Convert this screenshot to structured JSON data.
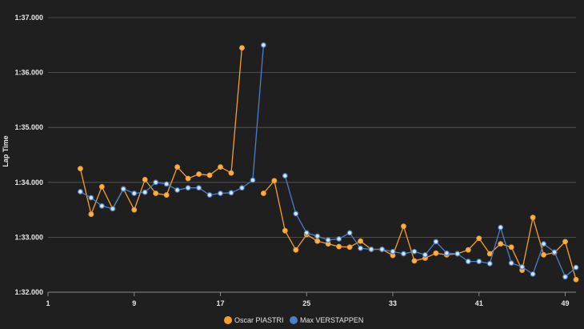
{
  "chart_data": {
    "type": "line",
    "title": "",
    "xlabel": "",
    "ylabel": "Lap Time",
    "xlim": [
      1,
      50
    ],
    "ylim": [
      92.0,
      97.0
    ],
    "x_ticks": [
      1,
      9,
      17,
      25,
      33,
      41,
      49
    ],
    "y_ticks": [
      {
        "value": 92.0,
        "label": "1:32.000"
      },
      {
        "value": 93.0,
        "label": "1:33.000"
      },
      {
        "value": 94.0,
        "label": "1:34.000"
      },
      {
        "value": 95.0,
        "label": "1:35.000"
      },
      {
        "value": 96.0,
        "label": "1:36.000"
      },
      {
        "value": 97.0,
        "label": "1:37.000"
      }
    ],
    "grid": true,
    "legend_position": "bottom-center",
    "series": [
      {
        "name": "Oscar PIASTRI",
        "color": "#f59f2a",
        "x": [
          4,
          5,
          6,
          7,
          8,
          9,
          10,
          11,
          12,
          13,
          14,
          15,
          16,
          17,
          18,
          19,
          21,
          22,
          23,
          24,
          25,
          26,
          27,
          28,
          29,
          30,
          31,
          32,
          33,
          34,
          35,
          36,
          37,
          38,
          39,
          40,
          41,
          42,
          43,
          44,
          45,
          46,
          47,
          48,
          49,
          50
        ],
        "y": [
          94.25,
          93.42,
          93.92,
          93.52,
          93.88,
          93.5,
          94.05,
          93.8,
          93.77,
          94.28,
          94.07,
          94.15,
          94.13,
          94.28,
          94.17,
          96.45,
          93.8,
          94.03,
          93.12,
          92.77,
          93.05,
          92.93,
          92.88,
          92.83,
          92.82,
          92.93,
          92.78,
          92.78,
          92.67,
          93.2,
          92.57,
          92.62,
          92.71,
          92.68,
          92.7,
          92.77,
          92.98,
          92.7,
          92.88,
          92.82,
          92.4,
          93.36,
          92.68,
          92.72,
          92.92,
          92.23
        ]
      },
      {
        "name": "Max VERSTAPPEN",
        "color": "#4a7fc9",
        "x": [
          4,
          5,
          6,
          7,
          8,
          9,
          10,
          11,
          12,
          13,
          14,
          15,
          16,
          17,
          18,
          19,
          20,
          21,
          23,
          24,
          25,
          26,
          27,
          28,
          29,
          30,
          31,
          32,
          33,
          34,
          35,
          36,
          37,
          38,
          39,
          40,
          41,
          42,
          43,
          44,
          45,
          46,
          47,
          48,
          49,
          50
        ],
        "y": [
          93.83,
          93.72,
          93.57,
          93.52,
          93.88,
          93.8,
          93.82,
          94.0,
          93.97,
          93.86,
          93.9,
          93.9,
          93.77,
          93.8,
          93.81,
          93.9,
          94.04,
          96.5,
          94.12,
          93.43,
          93.08,
          93.02,
          92.95,
          92.97,
          93.08,
          92.8,
          92.78,
          92.78,
          92.74,
          92.7,
          92.74,
          92.68,
          92.92,
          92.71,
          92.7,
          92.56,
          92.56,
          92.52,
          93.18,
          92.53,
          92.46,
          92.33,
          92.88,
          92.73,
          92.28,
          92.45
        ]
      }
    ]
  }
}
